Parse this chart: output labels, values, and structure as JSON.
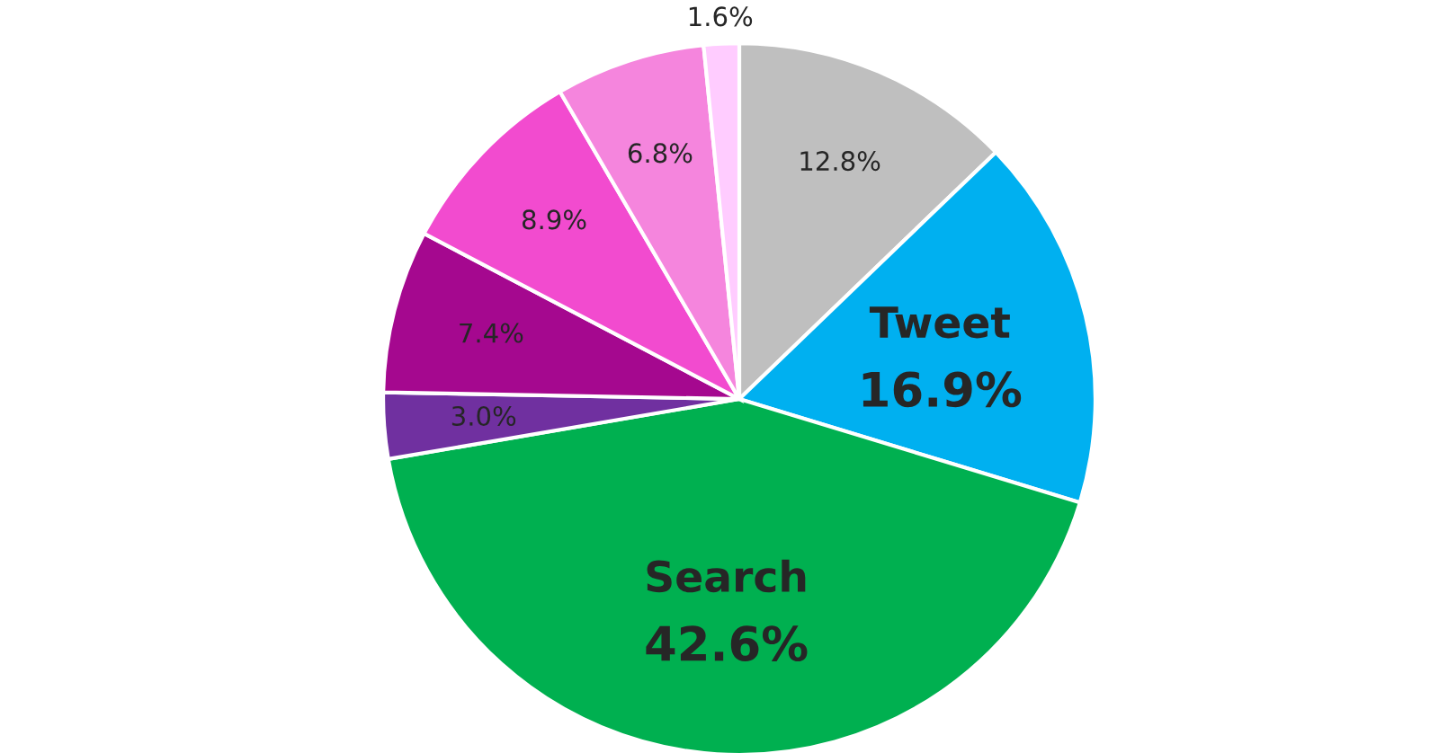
{
  "chart_data": {
    "type": "pie",
    "categories": [
      null,
      "Tweet",
      "Search",
      null,
      null,
      null,
      null,
      null
    ],
    "values": [
      12.8,
      16.9,
      42.6,
      3.0,
      7.4,
      8.9,
      6.8,
      1.6
    ],
    "value_labels": [
      "12.8%",
      "16.9%",
      "42.6%",
      "3.0%",
      "7.4%",
      "8.9%",
      "6.8%",
      "1.6%"
    ],
    "colors": [
      "#bfbfbf",
      "#00b0f0",
      "#00b050",
      "#7030a0",
      "#a5088f",
      "#f24bcf",
      "#f585dd",
      "#ffccff"
    ],
    "legend": false
  }
}
